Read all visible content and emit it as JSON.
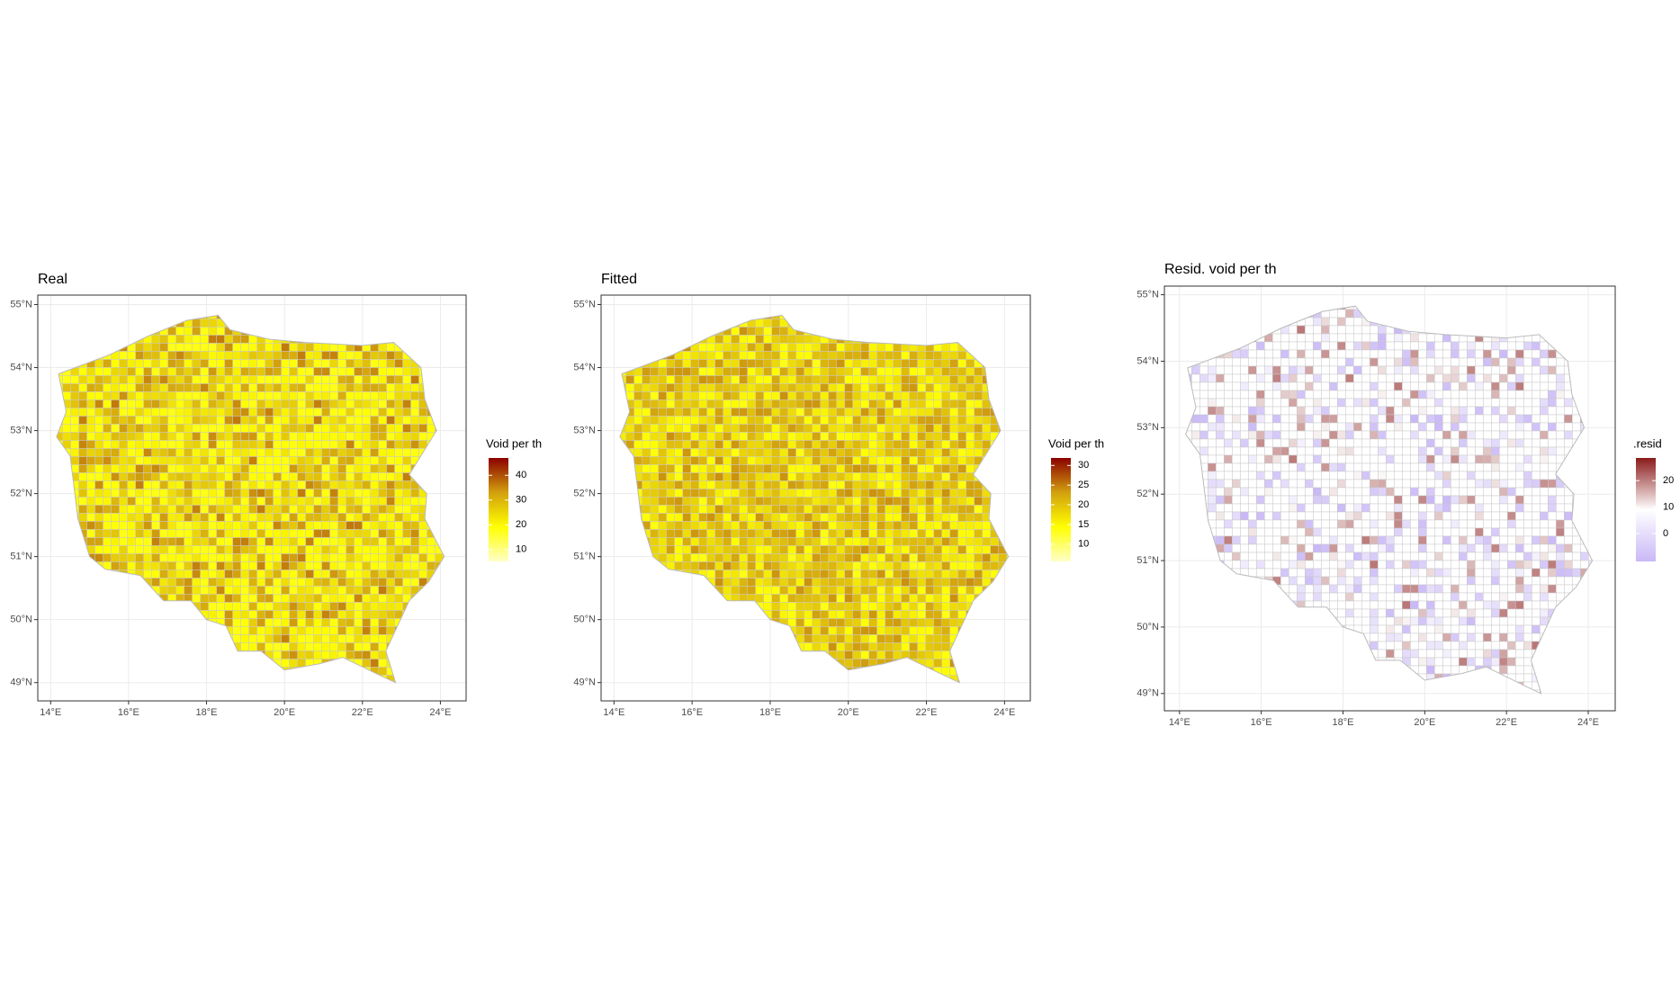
{
  "panels": [
    {
      "title": "Real",
      "xlim": [
        13.67,
        24.66
      ],
      "ylim": [
        48.71,
        55.15
      ],
      "xticks": [
        {
          "value": 14,
          "label": "14°E"
        },
        {
          "value": 16,
          "label": "16°E"
        },
        {
          "value": 18,
          "label": "18°E"
        },
        {
          "value": 20,
          "label": "20°E"
        },
        {
          "value": 22,
          "label": "22°E"
        },
        {
          "value": 24,
          "label": "24°E"
        }
      ],
      "yticks": [
        {
          "value": 49,
          "label": "49°N"
        },
        {
          "value": 50,
          "label": "50°N"
        },
        {
          "value": 51,
          "label": "51°N"
        },
        {
          "value": 52,
          "label": "52°N"
        },
        {
          "value": 53,
          "label": "53°N"
        },
        {
          "value": 54,
          "label": "54°N"
        },
        {
          "value": 55,
          "label": "55°N"
        }
      ],
      "legend": {
        "title": "Void per th",
        "limits": [
          5.2,
          47
        ],
        "ticks": [
          10,
          20,
          30,
          40
        ],
        "colors": [
          "#ffffc8",
          "#ffff00",
          "#d2a00e",
          "#8b0000"
        ]
      }
    },
    {
      "title": "Fitted",
      "xlim": [
        13.67,
        24.66
      ],
      "ylim": [
        48.71,
        55.15
      ],
      "xticks": [
        {
          "value": 14,
          "label": "14°E"
        },
        {
          "value": 16,
          "label": "16°E"
        },
        {
          "value": 18,
          "label": "18°E"
        },
        {
          "value": 20,
          "label": "20°E"
        },
        {
          "value": 22,
          "label": "22°E"
        },
        {
          "value": 24,
          "label": "24°E"
        }
      ],
      "yticks": [
        {
          "value": 49,
          "label": "49°N"
        },
        {
          "value": 50,
          "label": "50°N"
        },
        {
          "value": 51,
          "label": "51°N"
        },
        {
          "value": 52,
          "label": "52°N"
        },
        {
          "value": 53,
          "label": "53°N"
        },
        {
          "value": 54,
          "label": "54°N"
        },
        {
          "value": 55,
          "label": "55°N"
        }
      ],
      "legend": {
        "title": "Void per th",
        "limits": [
          5.6,
          31.9
        ],
        "ticks": [
          10,
          15,
          20,
          25,
          30
        ],
        "colors": [
          "#ffffc8",
          "#ffff00",
          "#d2a00e",
          "#8b0000"
        ]
      }
    },
    {
      "title": "Resid. void per th",
      "xlim": [
        13.63,
        24.66
      ],
      "ylim": [
        48.74,
        55.13
      ],
      "xticks": [
        {
          "value": 14,
          "label": "14°E"
        },
        {
          "value": 16,
          "label": "16°E"
        },
        {
          "value": 18,
          "label": "18°E"
        },
        {
          "value": 20,
          "label": "20°E"
        },
        {
          "value": 22,
          "label": "22°E"
        },
        {
          "value": 24,
          "label": "24°E"
        }
      ],
      "yticks": [
        {
          "value": 49,
          "label": "49°N"
        },
        {
          "value": 50,
          "label": "50°N"
        },
        {
          "value": 51,
          "label": "51°N"
        },
        {
          "value": 52,
          "label": "52°N"
        },
        {
          "value": 53,
          "label": "53°N"
        },
        {
          "value": 54,
          "label": "54°N"
        },
        {
          "value": 55,
          "label": "55°N"
        }
      ],
      "legend": {
        "title": ".resid",
        "limits": [
          -10.6,
          28.6
        ],
        "ticks": [
          0,
          10,
          20
        ],
        "colors": [
          "#c9b8f7",
          "#ffffff",
          "#8b1a1a"
        ]
      }
    }
  ]
}
